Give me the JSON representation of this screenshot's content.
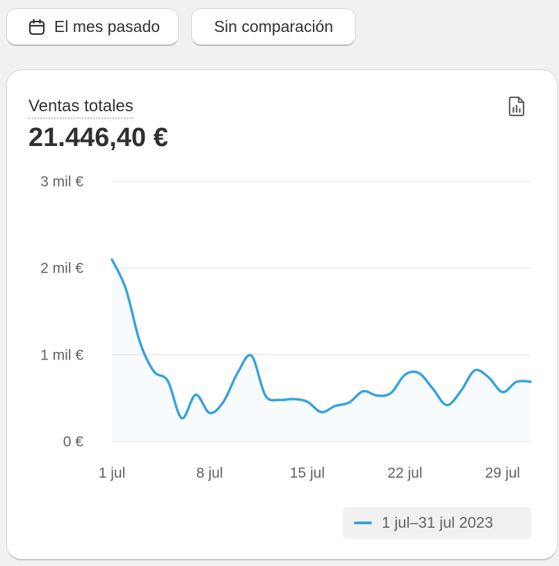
{
  "filters": {
    "period_label": "El mes pasado",
    "comparison_label": "Sin comparación"
  },
  "card": {
    "title": "Ventas totales",
    "value": "21.446,40 €"
  },
  "icons": {
    "period": "calendar-icon",
    "report": "report-document-icon"
  },
  "colors": {
    "series": "#36a3dc",
    "background": "#f1f1f1",
    "card": "#ffffff",
    "grid": "#ebebeb"
  },
  "chart_data": {
    "type": "line",
    "title": "",
    "xlabel": "",
    "ylabel": "",
    "ylim": [
      0,
      3000
    ],
    "y_ticks": [
      0,
      1000,
      2000,
      3000
    ],
    "y_tick_labels": [
      "0 €",
      "1 mil €",
      "2 mil €",
      "3 mil €"
    ],
    "x_ticks": [
      1,
      8,
      15,
      22,
      29
    ],
    "x_tick_labels": [
      "1 jul",
      "8 jul",
      "15 jul",
      "22 jul",
      "29 jul"
    ],
    "xlim": [
      1,
      31
    ],
    "grid": true,
    "legend_position": "bottom-right",
    "series": [
      {
        "name": "1 jul–31 jul 2023",
        "x": [
          1,
          2,
          3,
          4,
          5,
          6,
          7,
          8,
          9,
          10,
          11,
          12,
          13,
          14,
          15,
          16,
          17,
          18,
          19,
          20,
          21,
          22,
          23,
          24,
          25,
          26,
          27,
          28,
          29,
          30,
          31
        ],
        "y": [
          2100,
          1760,
          1150,
          810,
          700,
          270,
          540,
          330,
          460,
          790,
          990,
          530,
          480,
          490,
          460,
          340,
          410,
          450,
          580,
          530,
          560,
          770,
          790,
          610,
          420,
          580,
          820,
          740,
          570,
          690,
          690
        ]
      }
    ]
  }
}
